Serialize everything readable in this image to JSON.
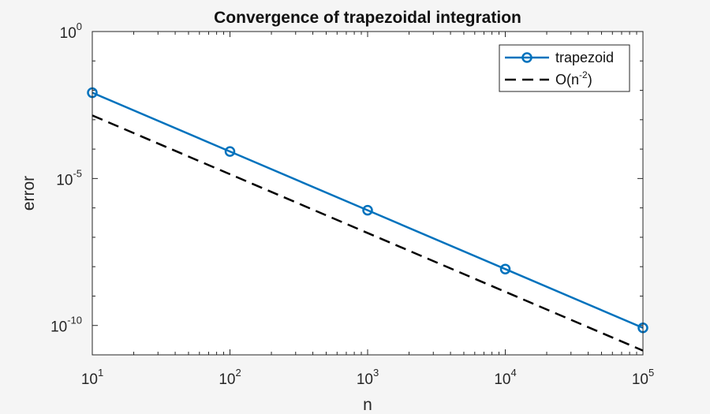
{
  "chart_data": {
    "type": "line",
    "title": "Convergence of trapezoidal integration",
    "xlabel": "n",
    "ylabel": "error",
    "xscale": "log",
    "yscale": "log",
    "xlim": [
      10,
      100000
    ],
    "ylim": [
      1e-11,
      1
    ],
    "xticks": [
      {
        "value": 10,
        "base": "10",
        "exp": "1"
      },
      {
        "value": 100,
        "base": "10",
        "exp": "2"
      },
      {
        "value": 1000,
        "base": "10",
        "exp": "3"
      },
      {
        "value": 10000,
        "base": "10",
        "exp": "4"
      },
      {
        "value": 100000,
        "base": "10",
        "exp": "5"
      }
    ],
    "yticks": [
      {
        "value": 1,
        "base": "10",
        "exp": "0"
      },
      {
        "value": 1e-05,
        "base": "10",
        "exp": "-5"
      },
      {
        "value": 1e-10,
        "base": "10",
        "exp": "-10"
      }
    ],
    "grid": false,
    "legend_position": "top-right",
    "series": [
      {
        "name": "trapezoid",
        "color": "#0072BD",
        "style": "solid",
        "marker": "circle",
        "x": [
          10,
          100,
          1000,
          10000,
          100000
        ],
        "y": [
          0.0083,
          8.3e-05,
          8.3e-07,
          8.3e-09,
          8.3e-11
        ]
      },
      {
        "name_base": "O(n",
        "name_exp": "-2",
        "name_end": ")",
        "color": "#000000",
        "style": "dashed",
        "marker": "none",
        "x": [
          10,
          100000
        ],
        "y": [
          0.0014,
          1.4e-11
        ]
      }
    ]
  }
}
